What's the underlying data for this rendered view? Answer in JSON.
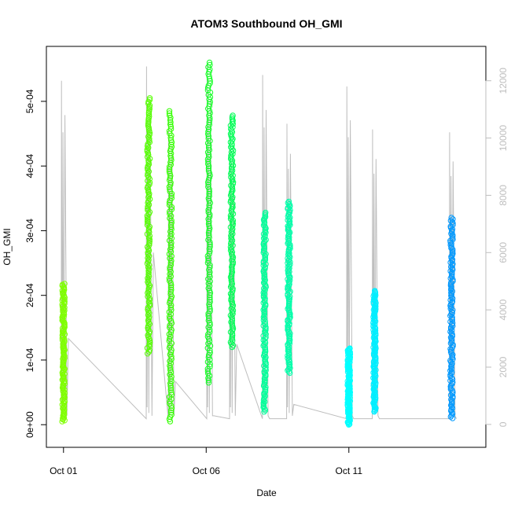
{
  "chart_data": {
    "type": "scatter",
    "title": "ATOM3 Southbound OH_GMI",
    "xlabel": "Date",
    "ylabel": "OH_GMI",
    "x_ticks": [
      {
        "label": "Oct 01",
        "value": 1
      },
      {
        "label": "Oct 06",
        "value": 6
      },
      {
        "label": "Oct 11",
        "value": 11
      }
    ],
    "xlim": [
      0.4,
      15.8
    ],
    "ylim": [
      -3.5e-05,
      0.000585
    ],
    "y_ticks": [
      {
        "label": "0e+00",
        "value": 0
      },
      {
        "label": "1e-04",
        "value": 0.0001
      },
      {
        "label": "2e-04",
        "value": 0.0002
      },
      {
        "label": "3e-04",
        "value": 0.0003
      },
      {
        "label": "4e-04",
        "value": 0.0004
      },
      {
        "label": "5e-04",
        "value": 0.0005
      }
    ],
    "y2_label": "",
    "y2lim": [
      -800,
      13200
    ],
    "y2_ticks": [
      {
        "label": "0",
        "value": 0
      },
      {
        "label": "2000",
        "value": 2000
      },
      {
        "label": "4000",
        "value": 4000
      },
      {
        "label": "6000",
        "value": 6000
      },
      {
        "label": "8000",
        "value": 8000
      },
      {
        "label": "10000",
        "value": 10000
      },
      {
        "label": "12000",
        "value": 12000
      }
    ],
    "grid": false,
    "legend": "none",
    "altitude_color": "#bebebe",
    "flights": [
      {
        "x": 1.0,
        "ymin": 5e-06,
        "ymax": 0.000218,
        "color": "#7FFF00",
        "alt_peak": 12000
      },
      {
        "x": 3.98,
        "ymin": 0.00011,
        "ymax": 0.000505,
        "color": "#55FF00",
        "alt_peak": 12500
      },
      {
        "x": 4.75,
        "ymin": 5e-06,
        "ymax": 0.000485,
        "color": "#33FF00",
        "alt_peak": 10800
      },
      {
        "x": 6.1,
        "ymin": 6.5e-05,
        "ymax": 0.00056,
        "color": "#11FF22",
        "alt_peak": 12600
      },
      {
        "x": 6.9,
        "ymin": 0.00012,
        "ymax": 0.000478,
        "color": "#00FF55",
        "alt_peak": 10800
      },
      {
        "x": 8.05,
        "ymin": 2e-05,
        "ymax": 0.000328,
        "color": "#00FF99",
        "alt_peak": 12200
      },
      {
        "x": 8.9,
        "ymin": 8e-05,
        "ymax": 0.000345,
        "color": "#00FFAA",
        "alt_peak": 10500
      },
      {
        "x": 11.0,
        "ymin": 0.0,
        "ymax": 0.000118,
        "color": "#00FFFF",
        "alt_peak": 11800
      },
      {
        "x": 11.9,
        "ymin": 2e-05,
        "ymax": 0.000207,
        "color": "#00EEFF",
        "alt_peak": 10300
      },
      {
        "x": 14.6,
        "ymin": 1e-05,
        "ymax": 0.00032,
        "color": "#0099FF",
        "alt_peak": 10200
      }
    ]
  }
}
